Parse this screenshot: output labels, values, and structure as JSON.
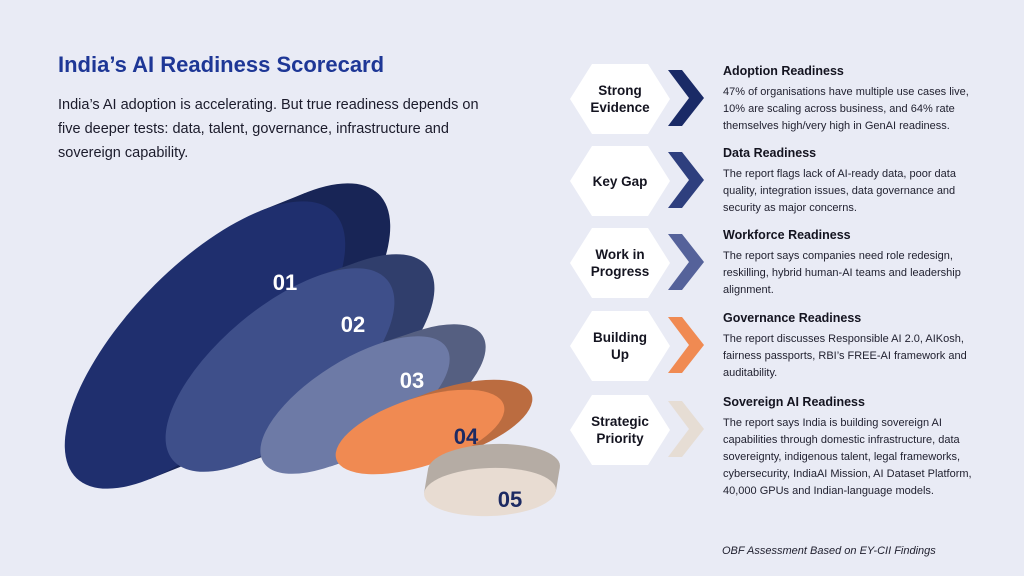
{
  "header": {
    "title": "India’s AI Readiness Scorecard",
    "subtitle": "India’s AI adoption is accelerating. But true readiness depends on five deeper tests: data, talent, governance, infrastructure and sovereign capability."
  },
  "discs": [
    {
      "label": "01",
      "color": "#1f2f6e"
    },
    {
      "label": "02",
      "color": "#3e4f8a"
    },
    {
      "label": "03",
      "color": "#6d7aa6"
    },
    {
      "label": "04",
      "color": "#f08a52"
    },
    {
      "label": "05",
      "color": "#e8dcd2"
    }
  ],
  "items": [
    {
      "badge_lines": [
        "Strong",
        "Evidence"
      ],
      "chevron_color": "#1a2a66",
      "title": "Adoption Readiness",
      "description": "47% of organisations have multiple use cases live, 10% are scaling across business, and 64% rate themselves high/very high in GenAI readiness."
    },
    {
      "badge_lines": [
        "Key Gap"
      ],
      "chevron_color": "#2e3f7e",
      "title": "Data Readiness",
      "description": "The report flags lack of AI-ready data, poor data quality, integration issues, data governance and security as major concerns."
    },
    {
      "badge_lines": [
        "Work in",
        "Progress"
      ],
      "chevron_color": "#55629a",
      "title": "Workforce Readiness",
      "description": "The report says companies need role redesign, reskilling, hybrid human-AI teams and leadership alignment."
    },
    {
      "badge_lines": [
        "Building",
        "Up"
      ],
      "chevron_color": "#f08a52",
      "title": "Governance Readiness",
      "description": "The report discusses Responsible AI 2.0, AIKosh, fairness passports, RBI’s FREE-AI framework and auditability."
    },
    {
      "badge_lines": [
        "Strategic",
        "Priority"
      ],
      "chevron_color": "#e6ddd4",
      "title": "Sovereign AI Readiness",
      "description": "The report says India is building sovereign AI capabilities through domestic infrastructure, data sovereignty, indigenous talent, legal frameworks, cybersecurity, IndiaAI Mission, AI Dataset Platform, 40,000 GPUs and Indian-language models."
    }
  ],
  "footer": "OBF Assessment Based on EY-CII Findings"
}
